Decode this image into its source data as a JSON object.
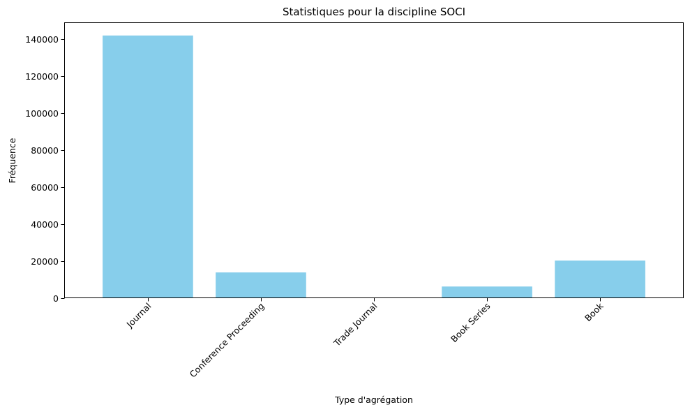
{
  "chart_data": {
    "type": "bar",
    "title": "Statistiques pour la discipline SOCI",
    "xlabel": "Type d'agrégation",
    "ylabel": "Fréquence",
    "categories": [
      "Journal",
      "Conference Proceeding",
      "Trade Journal",
      "Book Series",
      "Book"
    ],
    "values": [
      141900,
      13900,
      300,
      6300,
      20300
    ],
    "ylim": [
      0,
      149000
    ],
    "yticks": [
      0,
      20000,
      40000,
      60000,
      80000,
      100000,
      120000,
      140000
    ],
    "grid": false,
    "legend": "none",
    "bar_color": "#87ceeb",
    "xtick_rotation_deg": 45
  }
}
